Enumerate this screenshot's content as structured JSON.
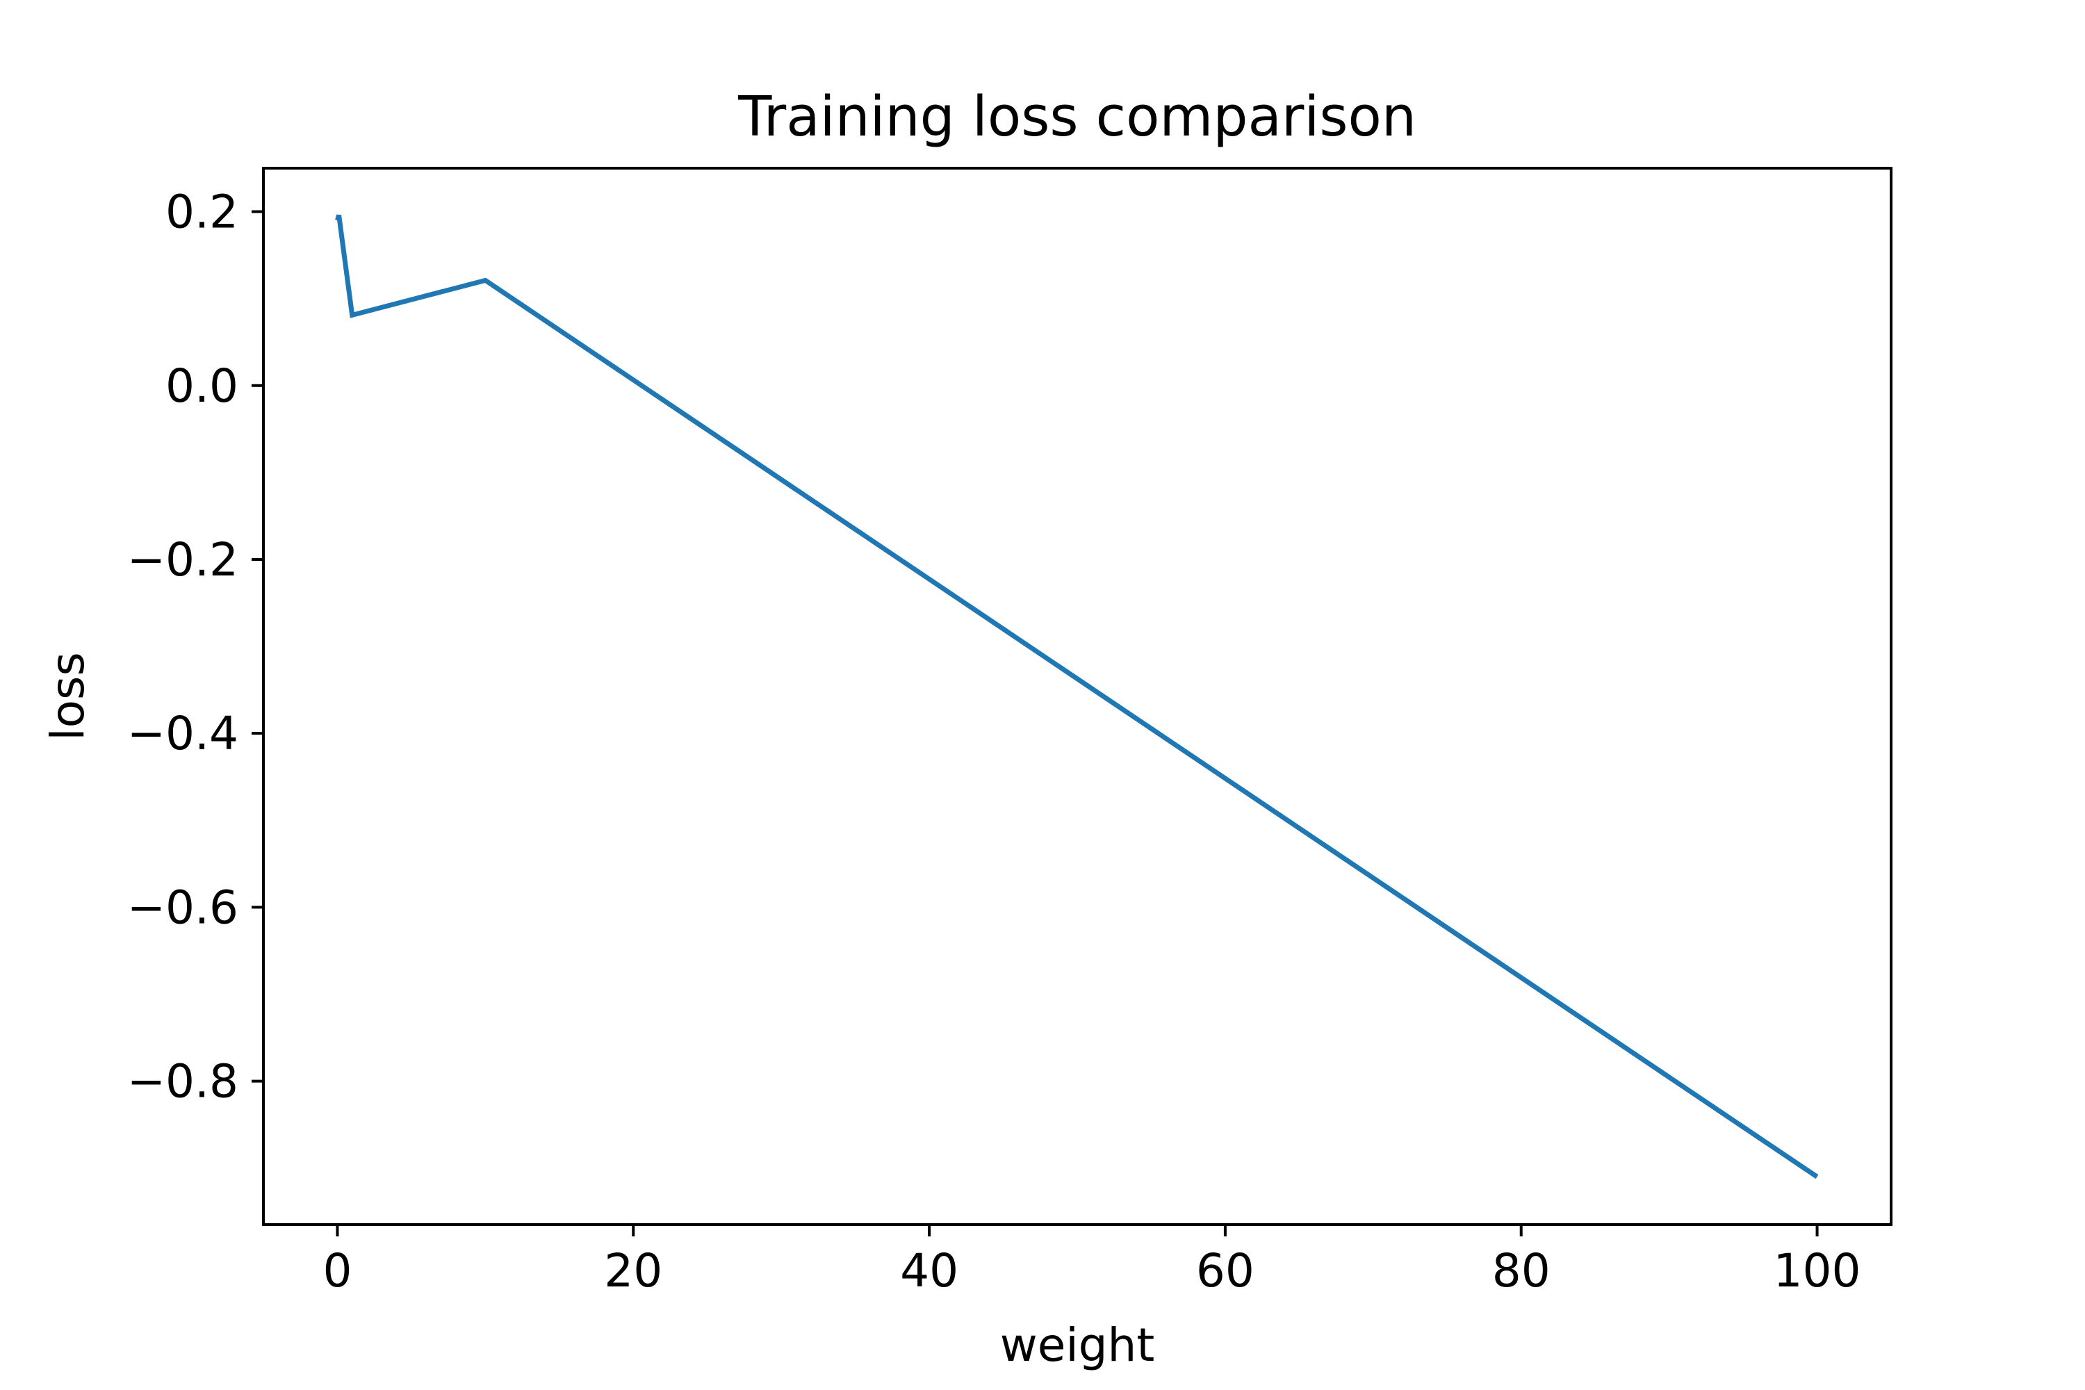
{
  "chart_data": {
    "type": "line",
    "title": "Training loss comparison",
    "xlabel": "weight",
    "ylabel": "loss",
    "xlim": [
      -5,
      105
    ],
    "ylim": [
      -0.965,
      0.25
    ],
    "xticks": [
      {
        "value": 0,
        "label": "0"
      },
      {
        "value": 20,
        "label": "20"
      },
      {
        "value": 40,
        "label": "40"
      },
      {
        "value": 60,
        "label": "60"
      },
      {
        "value": 80,
        "label": "80"
      },
      {
        "value": 100,
        "label": "100"
      }
    ],
    "yticks": [
      {
        "value": 0.2,
        "label": "0.2"
      },
      {
        "value": 0.0,
        "label": "0.0"
      },
      {
        "value": -0.2,
        "label": "−0.2"
      },
      {
        "value": -0.4,
        "label": "−0.4"
      },
      {
        "value": -0.6,
        "label": "−0.6"
      },
      {
        "value": -0.8,
        "label": "−0.8"
      }
    ],
    "grid": false,
    "series": [
      {
        "color": "#1f77b4",
        "x": [
          0,
          0.1,
          1,
          10,
          100
        ],
        "y": [
          0.19,
          0.196,
          0.081,
          0.121,
          -0.91
        ]
      }
    ]
  }
}
